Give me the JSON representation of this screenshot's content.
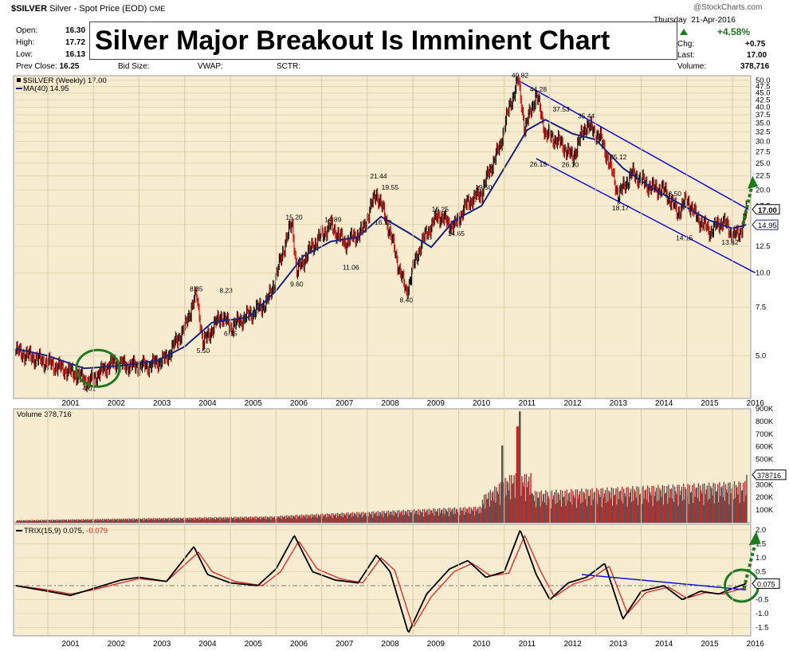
{
  "header": {
    "symbol": "$SILVER",
    "description": "Silver - Spot Price (EOD)",
    "exchange": "CME",
    "date": "21-Apr-2016",
    "date_prefix": "Thursday",
    "watermark": "@StockCharts.com",
    "fields": {
      "open_label": "Open:",
      "open": "16.30",
      "high_label": "High:",
      "high": "17.72",
      "low_label": "Low:",
      "low": "16.13",
      "prevclose_label": "Prev Close:",
      "prevclose": "16.25",
      "bidsize_label": "Bid Size:",
      "vwap_label": "VWAP:",
      "sctr_label": "SCTR:",
      "pct": "+4.58%",
      "chg_label": "Chg:",
      "chg": "+0.75",
      "last_label": "Last:",
      "last": "17.00",
      "volume_label": "Volume:",
      "volume": "378,716"
    }
  },
  "banner": {
    "title": "Silver Major Breakout Is Imminent Chart"
  },
  "colors": {
    "panel_bg": "#f7ecd0",
    "price_up": "#000000",
    "price_down": "#cc0000",
    "ma": "#1a237e",
    "channel": "#1010d0",
    "circle": "#1e7a1e",
    "arrow": "#1e7a1e",
    "trix": "#000000",
    "signal": "#e02020"
  },
  "chart_data": [
    {
      "type": "line",
      "title": "$SILVER (Weekly) 17.00",
      "series": [
        {
          "name": "$SILVER (Weekly) 17.00",
          "x": [
            2000.3,
            2001.0,
            2001.6,
            2001.9,
            2002.4,
            2002.8,
            2003.2,
            2003.6,
            2004.0,
            2004.25,
            2004.4,
            2004.8,
            2005.0,
            2005.5,
            2005.8,
            2006.0,
            2006.35,
            2006.45,
            2006.8,
            2007.2,
            2007.5,
            2007.9,
            2008.2,
            2008.65,
            2008.85,
            2009.2,
            2009.55,
            2009.9,
            2010.2,
            2010.5,
            2010.9,
            2011.3,
            2011.45,
            2011.7,
            2011.9,
            2012.2,
            2012.5,
            2012.8,
            2013.1,
            2013.5,
            2013.8,
            2014.2,
            2014.5,
            2014.8,
            2015.0,
            2015.2,
            2015.5,
            2015.8,
            2015.95,
            2016.15,
            2016.3
          ],
          "y": [
            5.2,
            4.7,
            4.3,
            4.01,
            4.7,
            4.6,
            4.6,
            4.9,
            6.3,
            8.35,
            5.5,
            7.0,
            6.35,
            7.2,
            7.8,
            9.6,
            15.2,
            10.0,
            12.5,
            14.89,
            12.8,
            14.2,
            19.55,
            11.06,
            8.4,
            13.0,
            16.25,
            14.65,
            18.0,
            19.5,
            28.5,
            49.82,
            33.0,
            44.28,
            32.0,
            30.0,
            26.1,
            34.5,
            31.0,
            19.0,
            23.0,
            20.5,
            20.0,
            16.5,
            18.5,
            16.0,
            14.15,
            15.5,
            14.0,
            13.62,
            17.0
          ]
        },
        {
          "name": "MA(40) 14.95",
          "x": [
            2000.3,
            2001.0,
            2001.8,
            2002.6,
            2003.4,
            2004.0,
            2004.6,
            2005.4,
            2006.0,
            2006.6,
            2007.2,
            2007.8,
            2008.3,
            2008.9,
            2009.4,
            2009.9,
            2010.5,
            2011.0,
            2011.5,
            2011.9,
            2012.5,
            2013.0,
            2013.6,
            2014.2,
            2014.8,
            2015.5,
            2016.0,
            2016.3
          ],
          "y": [
            5.3,
            5.0,
            4.5,
            4.6,
            4.8,
            5.4,
            6.6,
            6.9,
            8.6,
            11.5,
            13.0,
            13.5,
            16.0,
            14.0,
            12.4,
            15.5,
            17.5,
            24.0,
            33.0,
            36.0,
            32.0,
            30.5,
            24.0,
            20.5,
            18.0,
            15.5,
            14.5,
            14.95
          ]
        }
      ],
      "annotations": [
        {
          "text": "4.01",
          "x": 2001.9,
          "y": 4.01
        },
        {
          "text": "8.35",
          "x": 2004.25,
          "y": 8.35
        },
        {
          "text": "5.50",
          "x": 2004.4,
          "y": 5.5
        },
        {
          "text": "8.23",
          "x": 2004.9,
          "y": 8.23
        },
        {
          "text": "6.35",
          "x": 2005.0,
          "y": 6.35
        },
        {
          "text": "15.20",
          "x": 2006.35,
          "y": 15.2
        },
        {
          "text": "9.60",
          "x": 2006.45,
          "y": 9.6
        },
        {
          "text": "14.89",
          "x": 2007.2,
          "y": 14.89
        },
        {
          "text": "11.06",
          "x": 2007.6,
          "y": 11.06
        },
        {
          "text": "21.44",
          "x": 2008.2,
          "y": 21.44
        },
        {
          "text": "19.55",
          "x": 2008.45,
          "y": 19.55
        },
        {
          "text": "16.12",
          "x": 2008.3,
          "y": 16.12
        },
        {
          "text": "8.40",
          "x": 2008.85,
          "y": 8.4
        },
        {
          "text": "16.25",
          "x": 2009.55,
          "y": 16.25
        },
        {
          "text": "14.65",
          "x": 2009.9,
          "y": 14.65
        },
        {
          "text": "19.50",
          "x": 2010.5,
          "y": 19.5
        },
        {
          "text": "49.82",
          "x": 2011.3,
          "y": 49.82
        },
        {
          "text": "44.28",
          "x": 2011.7,
          "y": 44.28
        },
        {
          "text": "37.53",
          "x": 2012.2,
          "y": 37.53
        },
        {
          "text": "35.44",
          "x": 2012.75,
          "y": 35.44
        },
        {
          "text": "26.15",
          "x": 2011.7,
          "y": 26.15
        },
        {
          "text": "26.10",
          "x": 2012.4,
          "y": 26.1
        },
        {
          "text": "25.12",
          "x": 2013.45,
          "y": 25.12
        },
        {
          "text": "18.17",
          "x": 2013.5,
          "y": 18.17
        },
        {
          "text": "18.50",
          "x": 2014.65,
          "y": 18.5
        },
        {
          "text": "14.15",
          "x": 2014.9,
          "y": 14.15
        },
        {
          "text": "13.62",
          "x": 2015.9,
          "y": 13.62
        }
      ],
      "price_pill": "17.00",
      "ma_pill": "14.95",
      "yticks": [
        5.0,
        7.5,
        10.0,
        12.5,
        15.0,
        17.5,
        20.0,
        22.5,
        25.0,
        27.5,
        30.0,
        32.5,
        35.0,
        37.5,
        40.0,
        42.5,
        45.0,
        47.5,
        50.0
      ],
      "ytick_labels": [
        "5.0",
        "7.5",
        "10.0",
        "12.5",
        "15.0",
        "17.5",
        "20.0",
        "22.5",
        "25.0",
        "27.5",
        "30.0",
        "32.5",
        "35.0",
        "37.5",
        "40.0",
        "42.5",
        "45.0",
        "47.5",
        "50.0"
      ],
      "ylim": [
        3.5,
        52
      ],
      "scale": "log"
    },
    {
      "type": "bar",
      "title": "Volume 378,716",
      "pill": "378716",
      "ylim": [
        0,
        900000
      ],
      "yticks": [
        100000,
        200000,
        300000,
        400000,
        500000,
        600000,
        700000,
        800000,
        900000
      ],
      "ytick_labels": [
        "100K",
        "200K",
        "300K",
        "400K",
        "500K",
        "600K",
        "700K",
        "800K",
        "900K"
      ]
    },
    {
      "type": "line",
      "title": "TRIX(15,9)",
      "trix_value": "0.075",
      "signal_value": "-0.079",
      "pill": "0.075",
      "series": [
        {
          "name": "TRIX(15,9)",
          "x": [
            2000.3,
            2001.0,
            2001.5,
            2002.0,
            2002.6,
            2003.0,
            2003.6,
            2004.2,
            2004.5,
            2005.0,
            2005.6,
            2006.0,
            2006.4,
            2006.8,
            2007.3,
            2007.8,
            2008.2,
            2008.5,
            2008.9,
            2009.3,
            2009.8,
            2010.2,
            2010.6,
            2011.0,
            2011.35,
            2011.7,
            2012.0,
            2012.4,
            2012.8,
            2013.2,
            2013.6,
            2014.0,
            2014.5,
            2014.9,
            2015.3,
            2015.7,
            2016.0,
            2016.3
          ],
          "y": [
            0.0,
            -0.2,
            -0.35,
            -0.1,
            0.2,
            0.3,
            0.15,
            1.4,
            0.4,
            0.1,
            0.0,
            0.6,
            1.8,
            0.5,
            0.2,
            0.1,
            1.1,
            0.5,
            -1.7,
            -0.3,
            0.6,
            0.9,
            0.3,
            0.5,
            2.0,
            0.4,
            -0.5,
            0.1,
            0.3,
            0.8,
            -1.2,
            -0.2,
            0.0,
            -0.5,
            -0.2,
            -0.3,
            -0.1,
            0.075
          ]
        },
        {
          "name": "Signal",
          "x": [
            2000.3,
            2001.0,
            2001.5,
            2002.0,
            2002.6,
            2003.0,
            2003.6,
            2004.3,
            2004.6,
            2005.1,
            2005.7,
            2006.1,
            2006.5,
            2006.9,
            2007.4,
            2007.9,
            2008.3,
            2008.6,
            2009.0,
            2009.4,
            2009.9,
            2010.3,
            2010.7,
            2011.1,
            2011.45,
            2011.8,
            2012.1,
            2012.5,
            2012.9,
            2013.3,
            2013.7,
            2014.1,
            2014.6,
            2015.0,
            2015.4,
            2015.8,
            2016.1,
            2016.3
          ],
          "y": [
            0.0,
            -0.15,
            -0.3,
            -0.15,
            0.1,
            0.25,
            0.15,
            1.2,
            0.5,
            0.15,
            0.0,
            0.5,
            1.6,
            0.6,
            0.25,
            0.1,
            1.0,
            0.55,
            -1.5,
            -0.4,
            0.5,
            0.8,
            0.35,
            0.45,
            1.8,
            0.5,
            -0.4,
            0.05,
            0.25,
            0.7,
            -1.0,
            -0.25,
            -0.05,
            -0.45,
            -0.25,
            -0.3,
            -0.15,
            -0.079
          ]
        }
      ],
      "yticks": [
        -1.5,
        -1.0,
        -0.5,
        0.5,
        1.0,
        1.5,
        2.0
      ],
      "ytick_labels": [
        "-1.5",
        "-1.0",
        "-0.5",
        "0.5",
        "1.0",
        "1.5",
        "2.0"
      ],
      "ylim": [
        -1.8,
        2.2
      ]
    }
  ],
  "x_axis": {
    "labels": [
      "2001",
      "2002",
      "2003",
      "2004",
      "2005",
      "2006",
      "2007",
      "2008",
      "2009",
      "2010",
      "2011",
      "2012",
      "2013",
      "2014",
      "2015",
      "2016"
    ],
    "range": [
      2000.25,
      2016.4
    ]
  }
}
